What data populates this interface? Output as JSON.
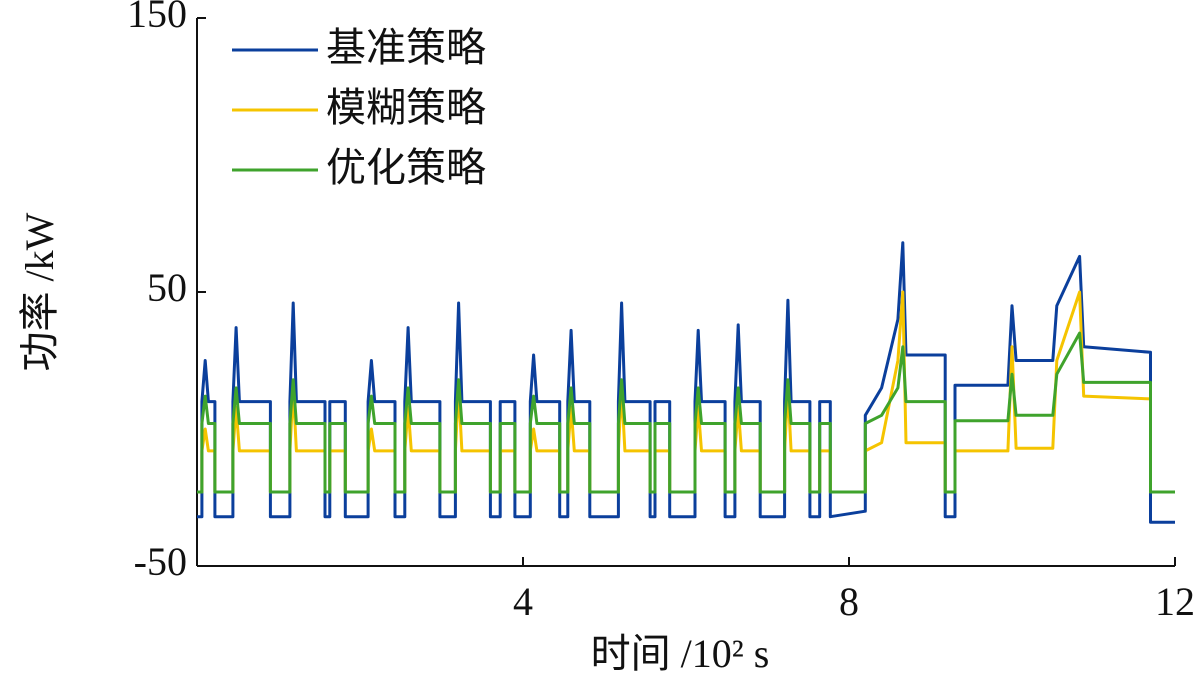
{
  "chart_data": {
    "type": "line",
    "y_label": "功率 /kW",
    "x_label": "时间 /10² s",
    "xlim": [
      0,
      12
    ],
    "xticks": [
      4,
      8,
      12
    ],
    "ylim": [
      -50,
      150
    ],
    "yticks": [
      -50,
      50,
      150
    ],
    "legend": "upper left",
    "x": [
      0,
      0.06,
      0.06,
      0.1,
      0.14,
      0.22,
      0.22,
      0.44,
      0.44,
      0.48,
      0.52,
      0.9,
      0.9,
      1.14,
      1.14,
      1.18,
      1.22,
      1.57,
      1.57,
      1.63,
      1.63,
      1.82,
      1.82,
      2.1,
      2.1,
      2.14,
      2.18,
      2.43,
      2.43,
      2.55,
      2.55,
      2.59,
      2.63,
      2.98,
      2.98,
      3.17,
      3.17,
      3.21,
      3.25,
      3.6,
      3.6,
      3.72,
      3.72,
      3.9,
      3.9,
      4.09,
      4.09,
      4.13,
      4.17,
      4.45,
      4.45,
      4.55,
      4.55,
      4.59,
      4.63,
      4.82,
      4.82,
      5.17,
      5.17,
      5.21,
      5.25,
      5.56,
      5.56,
      5.62,
      5.62,
      5.8,
      5.8,
      6.11,
      6.11,
      6.15,
      6.19,
      6.48,
      6.48,
      6.6,
      6.6,
      6.64,
      6.68,
      6.91,
      6.91,
      7.21,
      7.21,
      7.25,
      7.29,
      7.52,
      7.52,
      7.64,
      7.64,
      7.77,
      7.77,
      8.2,
      8.2,
      8.4,
      8.6,
      8.66,
      8.7,
      9.18,
      9.18,
      9.3,
      9.3,
      9.95,
      10.0,
      10.05,
      10.5,
      10.55,
      10.83,
      10.88,
      11.7,
      11.7,
      12
    ],
    "series": [
      {
        "name": "基准策略",
        "color": "#0b3f9c",
        "values": [
          -32,
          -32,
          10,
          25,
          10,
          10,
          -32,
          -32,
          10,
          37,
          10,
          10,
          -32,
          -32,
          10,
          46,
          10,
          10,
          -32,
          -32,
          10,
          10,
          -32,
          -32,
          10,
          25,
          10,
          10,
          -32,
          -32,
          10,
          37,
          10,
          10,
          -32,
          -32,
          10,
          46,
          10,
          10,
          -32,
          -32,
          10,
          10,
          -32,
          -32,
          10,
          27,
          10,
          10,
          -32,
          -32,
          10,
          36,
          10,
          10,
          -32,
          -32,
          10,
          46,
          10,
          10,
          -32,
          -32,
          10,
          10,
          -32,
          -32,
          10,
          36,
          10,
          10,
          -32,
          -32,
          10,
          38,
          10,
          10,
          -32,
          -32,
          10,
          47,
          10,
          10,
          -32,
          -32,
          10,
          10,
          -32,
          -30,
          5,
          15,
          40,
          68,
          27,
          27,
          -32,
          -32,
          16,
          16,
          45,
          25,
          25,
          45,
          63,
          30,
          28,
          -34,
          -34
        ]
      },
      {
        "name": "模糊策略",
        "color": "#f5c400",
        "values": [
          -23,
          -23,
          -8,
          0,
          -8,
          -8,
          -23,
          -23,
          -8,
          8,
          -8,
          -8,
          -23,
          -23,
          -8,
          15,
          -8,
          -8,
          -23,
          -23,
          -8,
          -8,
          -23,
          -23,
          -8,
          0,
          -8,
          -8,
          -23,
          -23,
          -8,
          8,
          -8,
          -8,
          -23,
          -23,
          -8,
          15,
          -8,
          -8,
          -23,
          -23,
          -8,
          -8,
          -23,
          -23,
          -8,
          0,
          -8,
          -8,
          -23,
          -23,
          -8,
          8,
          -8,
          -8,
          -23,
          -23,
          -8,
          15,
          -8,
          -8,
          -23,
          -23,
          -8,
          -8,
          -23,
          -23,
          -8,
          8,
          -8,
          -8,
          -23,
          -23,
          -8,
          8,
          -8,
          -8,
          -23,
          -23,
          -8,
          15,
          -8,
          -8,
          -23,
          -23,
          -8,
          -8,
          -23,
          -23,
          -8,
          -5,
          25,
          50,
          -5,
          -5,
          -23,
          -23,
          -8,
          -8,
          30,
          -7,
          -7,
          25,
          50,
          12,
          11,
          -23,
          -23
        ]
      },
      {
        "name": "优化策略",
        "color": "#3fa32c",
        "values": [
          -23,
          -23,
          2,
          12,
          2,
          2,
          -23,
          -23,
          2,
          15,
          2,
          2,
          -23,
          -23,
          2,
          18,
          2,
          2,
          -23,
          -23,
          2,
          2,
          -23,
          -23,
          2,
          12,
          2,
          2,
          -23,
          -23,
          2,
          15,
          2,
          2,
          -23,
          -23,
          2,
          18,
          2,
          2,
          -23,
          -23,
          2,
          2,
          -23,
          -23,
          2,
          12,
          2,
          2,
          -23,
          -23,
          2,
          15,
          2,
          2,
          -23,
          -23,
          2,
          18,
          2,
          2,
          -23,
          -23,
          2,
          2,
          -23,
          -23,
          2,
          15,
          2,
          2,
          -23,
          -23,
          2,
          15,
          2,
          2,
          -23,
          -23,
          2,
          18,
          2,
          2,
          -23,
          -23,
          2,
          2,
          -23,
          -23,
          2,
          5,
          15,
          30,
          10,
          10,
          -23,
          -23,
          3,
          3,
          20,
          5,
          5,
          20,
          35,
          17,
          17,
          -23,
          -23
        ]
      }
    ]
  }
}
